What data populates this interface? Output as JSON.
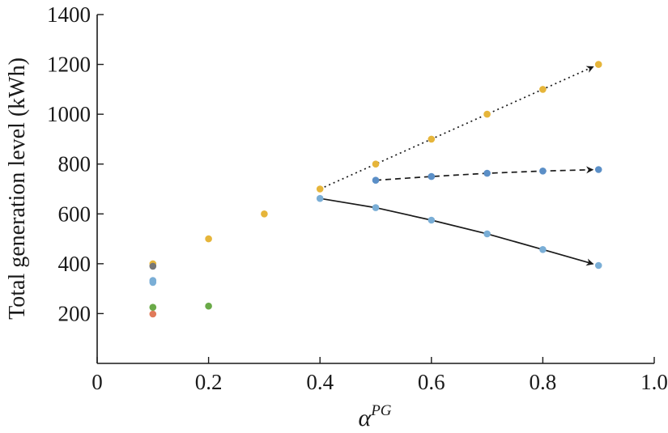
{
  "chart_data": {
    "type": "scatter",
    "title": "",
    "ylabel": "Total generation level (kWh)",
    "xlabel_base": "α",
    "xlabel_sup": "PG",
    "xlim": [
      0,
      1.0
    ],
    "ylim": [
      0,
      1400
    ],
    "xticks": [
      0,
      0.2,
      0.4,
      0.6,
      0.8,
      1.0
    ],
    "xtick_labels": [
      "0",
      "0.2",
      "0.4",
      "0.6",
      "0.8",
      "1.0"
    ],
    "yticks": [
      200,
      400,
      600,
      800,
      1000,
      1200,
      1400
    ],
    "ytick_labels": [
      "200",
      "400",
      "600",
      "800",
      "1000",
      "1200",
      "1400"
    ],
    "grid": false,
    "colors": {
      "orange": "#e6b53a",
      "light_blue": "#7aaed6",
      "mid_blue": "#5b8fc7",
      "green": "#6aaa48",
      "red": "#e07a5a",
      "gray": "#777777",
      "line": "#1a1a1a"
    },
    "series": [
      {
        "color": "orange",
        "x": [
          0.1,
          0.2,
          0.3,
          0.4,
          0.5,
          0.6,
          0.7,
          0.8,
          0.9
        ],
        "y": [
          400,
          500,
          600,
          700,
          800,
          900,
          1000,
          1100,
          1200
        ]
      },
      {
        "color": "light_blue",
        "x": [
          0.1,
          0.1,
          0.4,
          0.5,
          0.6,
          0.7,
          0.8,
          0.9
        ],
        "y": [
          325,
          333,
          662,
          625,
          575,
          520,
          457,
          393
        ]
      },
      {
        "color": "mid_blue",
        "x": [
          0.5,
          0.6,
          0.7,
          0.8,
          0.9
        ],
        "y": [
          735,
          750,
          763,
          772,
          778
        ]
      },
      {
        "color": "green",
        "x": [
          0.1,
          0.2
        ],
        "y": [
          225,
          230
        ]
      },
      {
        "color": "red",
        "x": [
          0.1
        ],
        "y": [
          198
        ]
      },
      {
        "color": "gray",
        "x": [
          0.1
        ],
        "y": [
          390
        ]
      }
    ],
    "arrows": [
      {
        "style": "dotted",
        "points": [
          [
            0.4,
            700
          ],
          [
            0.9,
            1200
          ]
        ]
      },
      {
        "style": "dashed",
        "points": [
          [
            0.5,
            735
          ],
          [
            0.6,
            750
          ],
          [
            0.7,
            763
          ],
          [
            0.8,
            772
          ],
          [
            0.9,
            778
          ]
        ]
      },
      {
        "style": "solid",
        "points": [
          [
            0.4,
            662
          ],
          [
            0.5,
            625
          ],
          [
            0.6,
            575
          ],
          [
            0.7,
            520
          ],
          [
            0.8,
            457
          ],
          [
            0.9,
            393
          ]
        ]
      }
    ]
  }
}
